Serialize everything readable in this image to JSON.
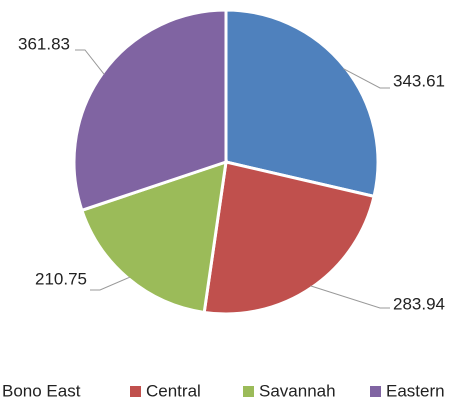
{
  "chart_data": {
    "type": "pie",
    "categories": [
      "Bono East",
      "Central",
      "Savannah",
      "Eastern"
    ],
    "values": [
      343.61,
      283.94,
      210.75,
      361.83
    ],
    "colors": [
      "#4f81bd",
      "#c0504d",
      "#9bbb59",
      "#8064a2"
    ],
    "legend": "bottom"
  }
}
